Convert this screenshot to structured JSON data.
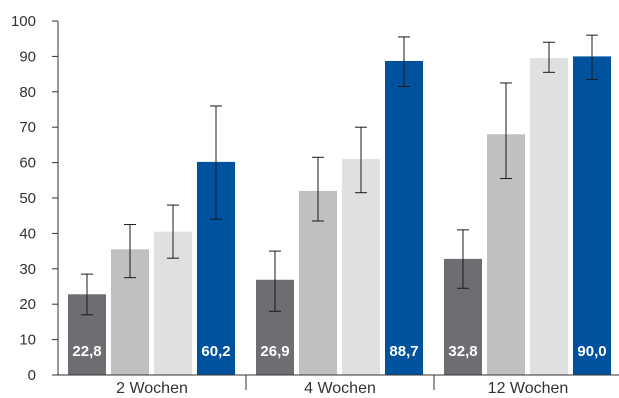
{
  "chart_data": {
    "type": "bar",
    "title": "",
    "xlabel": "",
    "ylabel": "",
    "ylim": [
      0,
      100
    ],
    "yticks": [
      "0",
      "10",
      "20",
      "30",
      "40",
      "50",
      "60",
      "70",
      "80",
      "90",
      "100"
    ],
    "categories": [
      "2 Wochen",
      "4 Wochen",
      "12 Wochen"
    ],
    "series": [
      {
        "color": "#6d6e71",
        "values": [
          22.8,
          26.9,
          32.8
        ],
        "errors_low": [
          17,
          18,
          24.5
        ],
        "errors_high": [
          28.5,
          35,
          41
        ],
        "labels": [
          "22,8",
          "26,9",
          "32,8"
        ]
      },
      {
        "color": "#bfc0c2",
        "values": [
          35.5,
          52,
          68
        ],
        "errors_low": [
          27.5,
          43.5,
          55.5
        ],
        "errors_high": [
          42.5,
          61.5,
          82.5
        ],
        "labels": [
          "",
          "",
          ""
        ]
      },
      {
        "color": "#dfe0e1",
        "values": [
          40.5,
          61,
          89.5
        ],
        "errors_low": [
          33,
          51.5,
          85.5
        ],
        "errors_high": [
          48,
          70,
          94
        ],
        "labels": [
          "",
          "",
          ""
        ]
      },
      {
        "color": "#00519e",
        "values": [
          60.2,
          88.7,
          90.0
        ],
        "errors_low": [
          44,
          81.5,
          83.5
        ],
        "errors_high": [
          76,
          95.5,
          96
        ],
        "labels": [
          "60,2",
          "88,7",
          "90,0"
        ]
      }
    ],
    "grid": false,
    "legend": "none"
  }
}
